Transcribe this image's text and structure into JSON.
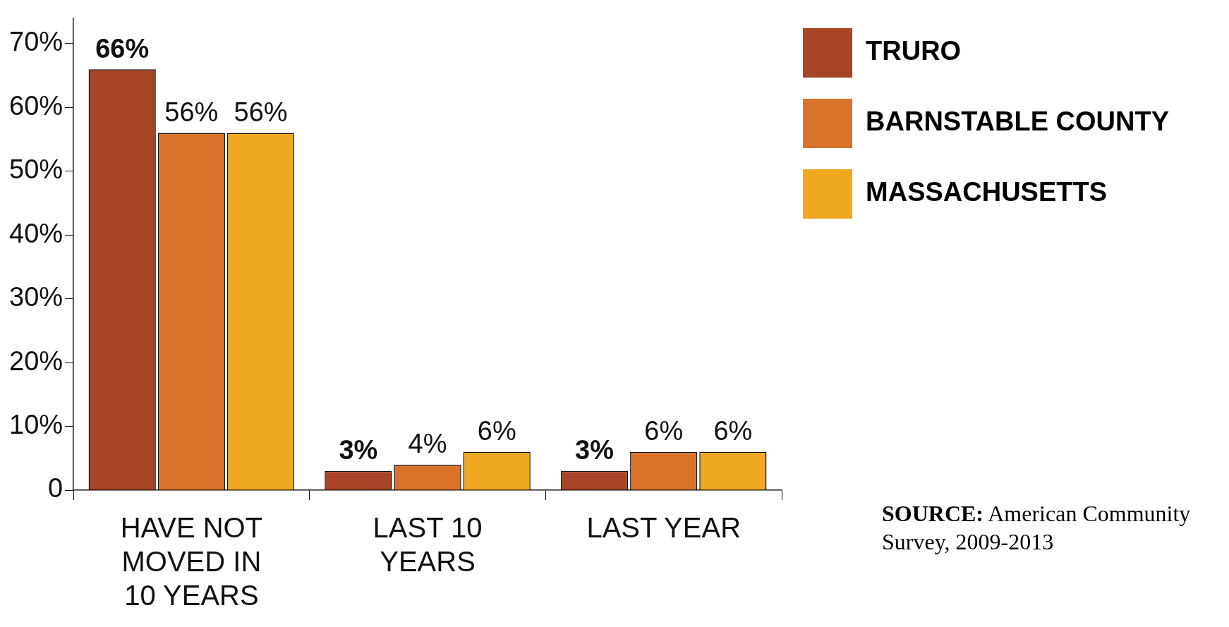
{
  "chart_data": {
    "type": "bar",
    "categories": [
      "HAVE NOT MOVED IN 10 YEARS",
      "LAST 10 YEARS",
      "LAST YEAR"
    ],
    "series": [
      {
        "name": "TRURO",
        "color": "#a64425",
        "values": [
          66,
          3,
          3
        ]
      },
      {
        "name": "BARNSTABLE COUNTY",
        "color": "#d9732a",
        "values": [
          56,
          4,
          6
        ]
      },
      {
        "name": "MASSACHUSETTS",
        "color": "#eea921",
        "values": [
          56,
          6,
          6
        ]
      }
    ],
    "ylim": [
      0,
      74
    ],
    "yticks": [
      0,
      {
        "value": 10,
        "label": "10%"
      },
      {
        "value": 20,
        "label": "20%"
      },
      {
        "value": 30,
        "label": "30%"
      },
      {
        "value": 40,
        "label": "40%"
      },
      {
        "value": 50,
        "label": "50%"
      },
      {
        "value": 60,
        "label": "60%"
      },
      {
        "value": 70,
        "label": "70%"
      }
    ],
    "value_labels": [
      [
        "66%",
        "3%",
        "3%"
      ],
      [
        "56%",
        "4%",
        "6%"
      ],
      [
        "56%",
        "6%",
        "6%"
      ]
    ],
    "legend": "top right",
    "annotations": [
      "SOURCE: American Community Survey, 2009-2013"
    ]
  }
}
